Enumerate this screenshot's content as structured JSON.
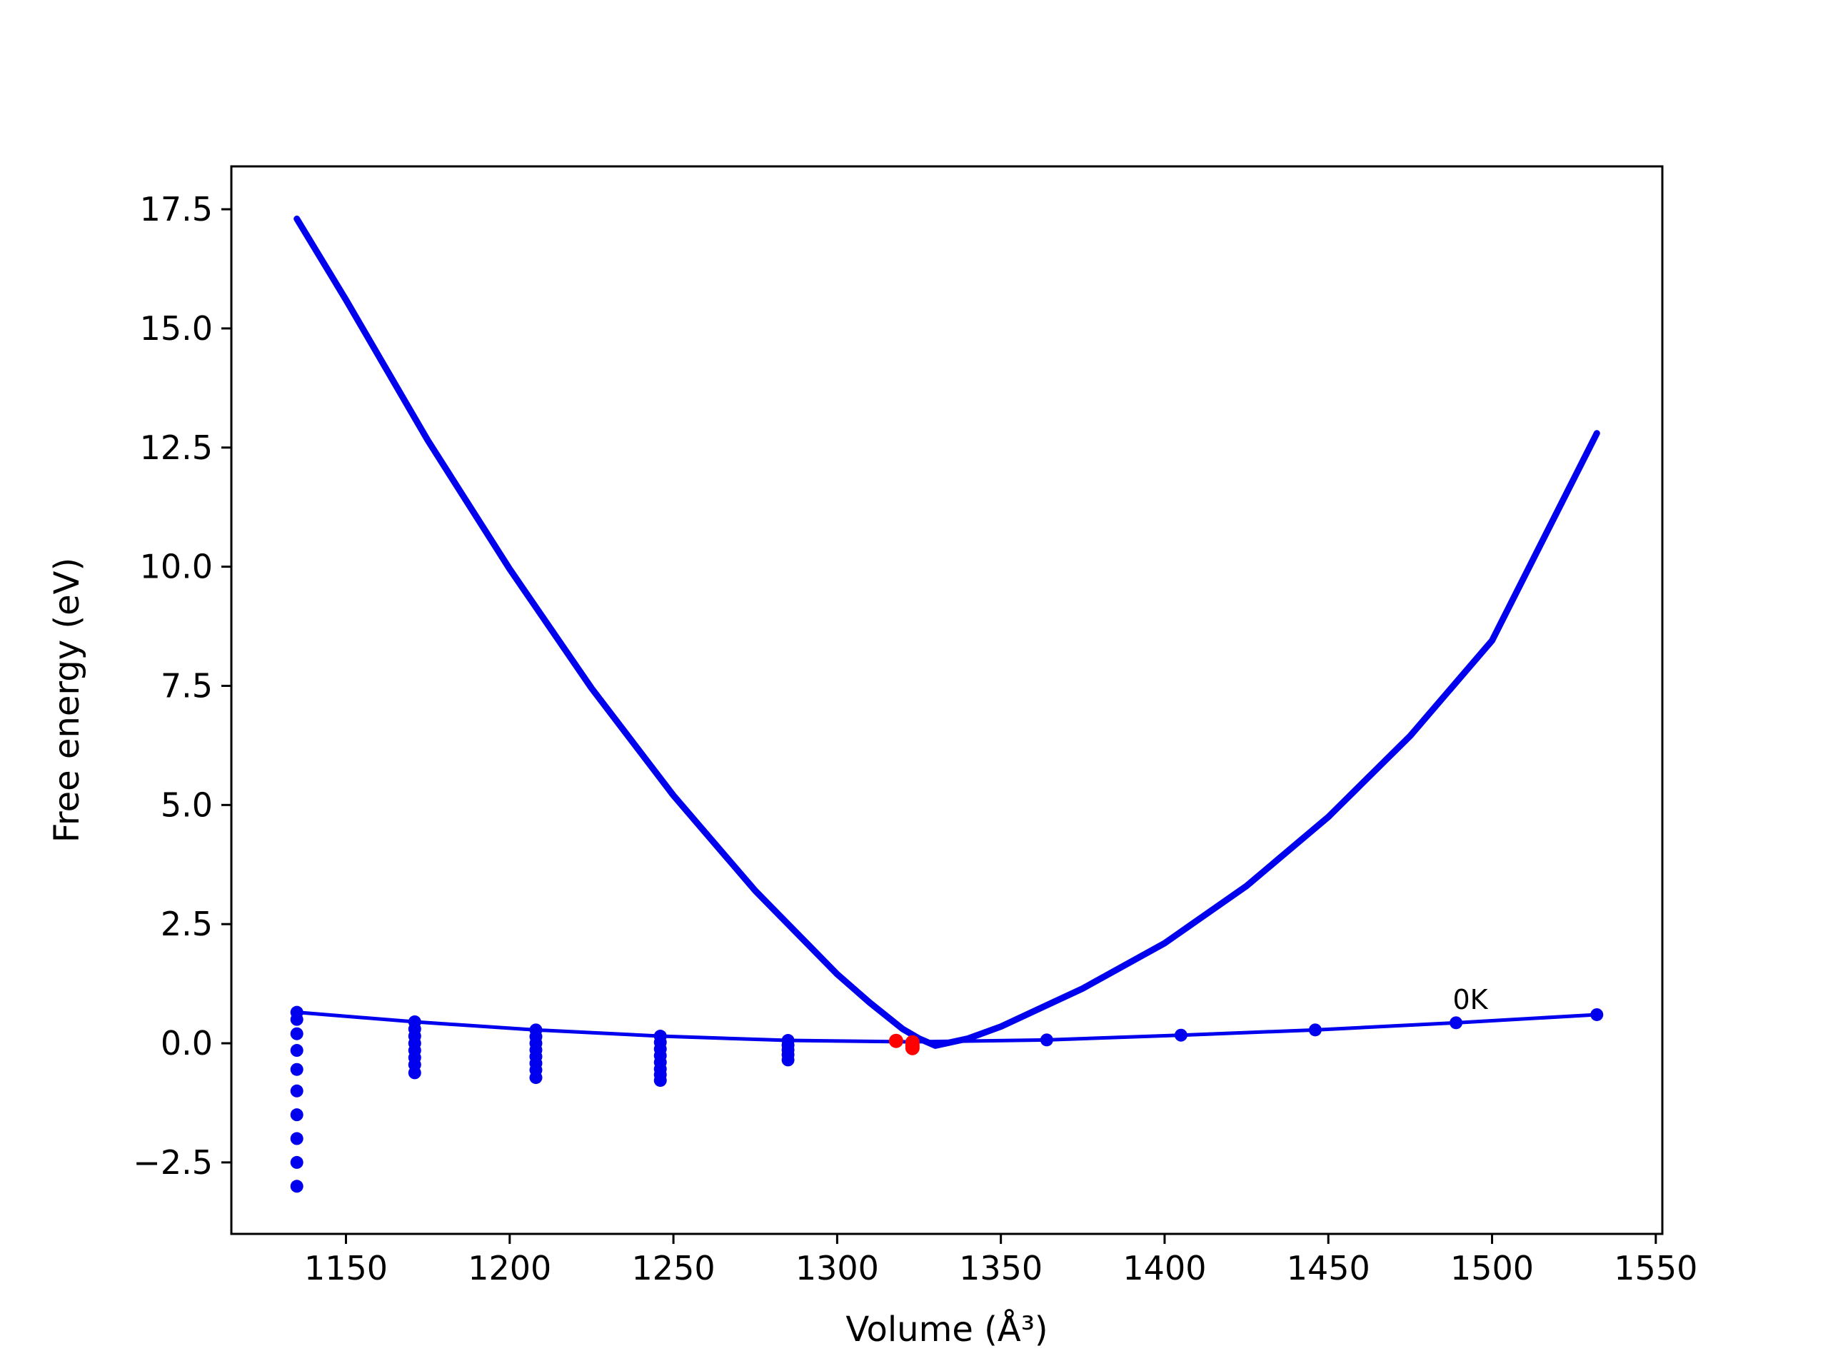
{
  "chart_data": {
    "type": "line",
    "xlabel": "Volume (Å³)",
    "ylabel": "Free energy (eV)",
    "xlim": [
      1115,
      1552
    ],
    "ylim": [
      -4.0,
      18.4
    ],
    "xticks": [
      {
        "value": 1150,
        "label": "1150"
      },
      {
        "value": 1200,
        "label": "1200"
      },
      {
        "value": 1250,
        "label": "1250"
      },
      {
        "value": 1300,
        "label": "1300"
      },
      {
        "value": 1350,
        "label": "1350"
      },
      {
        "value": 1400,
        "label": "1400"
      },
      {
        "value": 1450,
        "label": "1450"
      },
      {
        "value": 1500,
        "label": "1500"
      },
      {
        "value": 1550,
        "label": "1550"
      }
    ],
    "yticks": [
      {
        "value": -2.5,
        "label": "−2.5"
      },
      {
        "value": 0.0,
        "label": "0.0"
      },
      {
        "value": 2.5,
        "label": "2.5"
      },
      {
        "value": 5.0,
        "label": "5.0"
      },
      {
        "value": 7.5,
        "label": "7.5"
      },
      {
        "value": 10.0,
        "label": "10.0"
      },
      {
        "value": 12.5,
        "label": "12.5"
      },
      {
        "value": 15.0,
        "label": "15.0"
      },
      {
        "value": 17.5,
        "label": "17.5"
      }
    ],
    "grid": false,
    "annotations": [
      {
        "text": "0K",
        "x": 1488,
        "y": 0.72
      }
    ],
    "series": [
      {
        "kind": "line",
        "color": "#0000ee",
        "width": 9,
        "x": [
          1135,
          1150,
          1175,
          1200,
          1225,
          1250,
          1275,
          1300,
          1310,
          1320,
          1325,
          1330,
          1340,
          1350,
          1375,
          1400,
          1425,
          1450,
          1475,
          1500,
          1532
        ],
        "y": [
          17.3,
          15.6,
          12.65,
          9.95,
          7.45,
          5.2,
          3.2,
          1.45,
          0.85,
          0.3,
          0.1,
          -0.05,
          0.1,
          0.35,
          1.15,
          2.1,
          3.3,
          4.75,
          6.45,
          8.45,
          12.8
        ]
      },
      {
        "kind": "line",
        "color": "#0000ee",
        "width": 5,
        "x": [
          1135,
          1171,
          1208,
          1246,
          1285,
          1323,
          1364,
          1405,
          1446,
          1489,
          1532
        ],
        "y": [
          0.65,
          0.45,
          0.28,
          0.15,
          0.06,
          0.03,
          0.07,
          0.17,
          0.28,
          0.43,
          0.6
        ]
      },
      {
        "kind": "scatter",
        "color": "#0000ee",
        "size": 9,
        "points": [
          [
            1135,
            0.65
          ],
          [
            1135,
            0.5
          ],
          [
            1135,
            0.2
          ],
          [
            1135,
            -0.15
          ],
          [
            1135,
            -0.55
          ],
          [
            1135,
            -1.0
          ],
          [
            1135,
            -1.5
          ],
          [
            1135,
            -2.0
          ],
          [
            1135,
            -2.5
          ],
          [
            1135,
            -3.0
          ],
          [
            1171,
            0.45
          ],
          [
            1171,
            0.3
          ],
          [
            1171,
            0.15
          ],
          [
            1171,
            0.0
          ],
          [
            1171,
            -0.15
          ],
          [
            1171,
            -0.3
          ],
          [
            1171,
            -0.45
          ],
          [
            1171,
            -0.62
          ],
          [
            1208,
            0.28
          ],
          [
            1208,
            0.14
          ],
          [
            1208,
            0.0
          ],
          [
            1208,
            -0.14
          ],
          [
            1208,
            -0.28
          ],
          [
            1208,
            -0.42
          ],
          [
            1208,
            -0.56
          ],
          [
            1208,
            -0.72
          ],
          [
            1246,
            0.15
          ],
          [
            1246,
            0.02
          ],
          [
            1246,
            -0.12
          ],
          [
            1246,
            -0.26
          ],
          [
            1246,
            -0.4
          ],
          [
            1246,
            -0.54
          ],
          [
            1246,
            -0.66
          ],
          [
            1246,
            -0.78
          ],
          [
            1285,
            0.06
          ],
          [
            1285,
            -0.04
          ],
          [
            1285,
            -0.14
          ],
          [
            1285,
            -0.24
          ],
          [
            1285,
            -0.35
          ],
          [
            1364,
            0.07
          ],
          [
            1405,
            0.17
          ],
          [
            1446,
            0.28
          ],
          [
            1489,
            0.43
          ],
          [
            1532,
            0.6
          ]
        ]
      },
      {
        "kind": "scatter",
        "color": "#ff0000",
        "size": 10,
        "points": [
          [
            1318,
            0.05
          ],
          [
            1323,
            0.02
          ],
          [
            1323,
            -0.05
          ],
          [
            1323,
            -0.1
          ]
        ]
      }
    ]
  }
}
